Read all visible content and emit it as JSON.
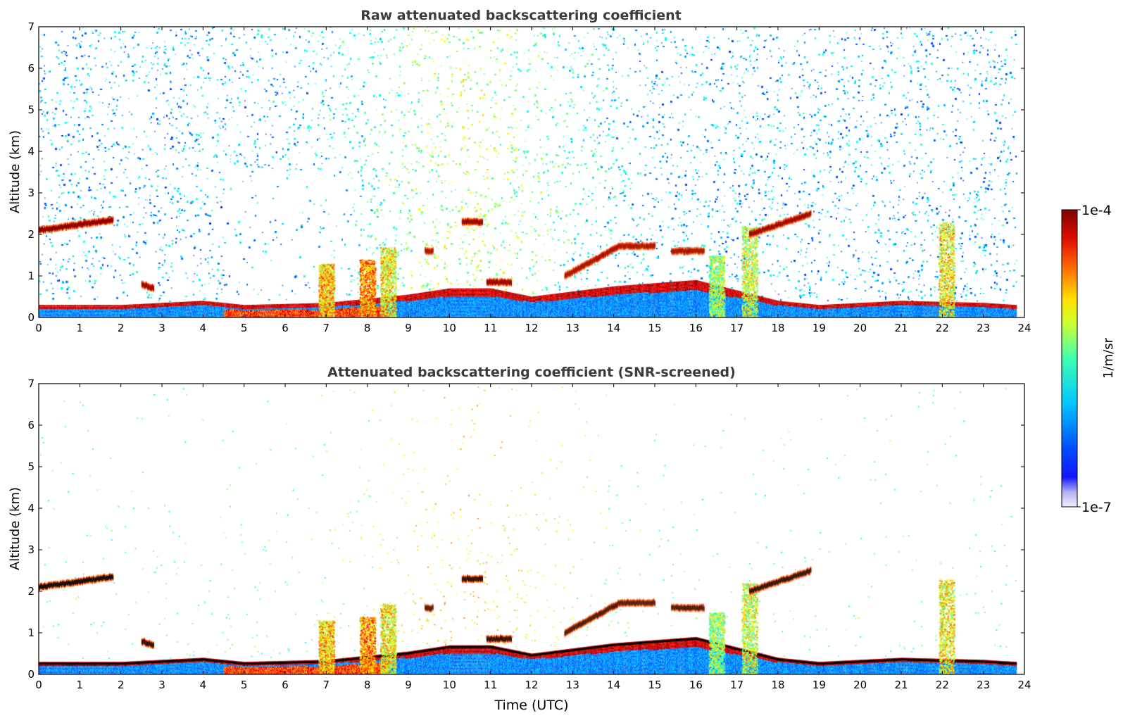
{
  "chart_data": [
    {
      "type": "heatmap",
      "title": "Raw attenuated backscattering coefficient",
      "xlabel": "",
      "ylabel": "Altitude (km)",
      "xlim": [
        0,
        24
      ],
      "ylim": [
        0,
        7
      ],
      "xticks": [
        "0",
        "1",
        "2",
        "3",
        "4",
        "5",
        "6",
        "7",
        "8",
        "9",
        "10",
        "11",
        "12",
        "13",
        "14",
        "15",
        "16",
        "17",
        "18",
        "19",
        "20",
        "21",
        "22",
        "23",
        "24"
      ],
      "yticks": [
        "0",
        "1",
        "2",
        "3",
        "4",
        "5",
        "6",
        "7"
      ],
      "noise_level": "high",
      "layers": [
        {
          "t0": 0.0,
          "t1": 1.8,
          "alt_start": 2.1,
          "alt_end": 2.35,
          "intensity": 1.0
        },
        {
          "t0": 2.5,
          "t1": 2.8,
          "alt_start": 0.8,
          "alt_end": 0.7,
          "intensity": 0.95
        },
        {
          "t0": 9.4,
          "t1": 9.6,
          "alt_start": 1.6,
          "alt_end": 1.6,
          "intensity": 0.9
        },
        {
          "t0": 10.3,
          "t1": 10.8,
          "alt_start": 2.3,
          "alt_end": 2.3,
          "intensity": 1.0
        },
        {
          "t0": 10.9,
          "t1": 11.5,
          "alt_start": 0.85,
          "alt_end": 0.85,
          "intensity": 1.0
        },
        {
          "t0": 12.8,
          "t1": 14.1,
          "alt_start": 1.0,
          "alt_end": 1.7,
          "intensity": 1.0
        },
        {
          "t0": 14.1,
          "t1": 15.0,
          "alt_start": 1.72,
          "alt_end": 1.72,
          "intensity": 0.9
        },
        {
          "t0": 15.4,
          "t1": 16.2,
          "alt_start": 1.6,
          "alt_end": 1.6,
          "intensity": 0.95
        },
        {
          "t0": 17.3,
          "t1": 18.8,
          "alt_start": 2.0,
          "alt_end": 2.5,
          "intensity": 1.0
        }
      ],
      "plumes": [
        {
          "t": 7.0,
          "top": 1.3,
          "intensity": 0.85
        },
        {
          "t": 8.0,
          "top": 1.4,
          "intensity": 0.9
        },
        {
          "t": 8.5,
          "top": 1.7,
          "intensity": 0.8
        },
        {
          "t": 16.5,
          "top": 1.5,
          "intensity": 0.7
        },
        {
          "t": 17.3,
          "top": 2.2,
          "intensity": 0.75
        },
        {
          "t": 22.1,
          "top": 2.3,
          "intensity": 0.8
        }
      ],
      "surface_layer_top": [
        {
          "t": 0,
          "alt": 0.3
        },
        {
          "t": 2,
          "alt": 0.3
        },
        {
          "t": 4,
          "alt": 0.4
        },
        {
          "t": 5,
          "alt": 0.3
        },
        {
          "t": 7,
          "alt": 0.35
        },
        {
          "t": 9,
          "alt": 0.55
        },
        {
          "t": 10,
          "alt": 0.7
        },
        {
          "t": 11,
          "alt": 0.7
        },
        {
          "t": 12,
          "alt": 0.5
        },
        {
          "t": 14,
          "alt": 0.75
        },
        {
          "t": 16,
          "alt": 0.9
        },
        {
          "t": 18,
          "alt": 0.4
        },
        {
          "t": 19,
          "alt": 0.3
        },
        {
          "t": 21,
          "alt": 0.4
        },
        {
          "t": 23,
          "alt": 0.35
        },
        {
          "t": 23.8,
          "alt": 0.3
        }
      ]
    },
    {
      "type": "heatmap",
      "title": "Attenuated backscattering coefficient (SNR-screened)",
      "xlabel": "Time (UTC)",
      "ylabel": "Altitude (km)",
      "xlim": [
        0,
        24
      ],
      "ylim": [
        0,
        7
      ],
      "xticks": [
        "0",
        "1",
        "2",
        "3",
        "4",
        "5",
        "6",
        "7",
        "8",
        "9",
        "10",
        "11",
        "12",
        "13",
        "14",
        "15",
        "16",
        "17",
        "18",
        "19",
        "20",
        "21",
        "22",
        "23",
        "24"
      ],
      "yticks": [
        "0",
        "1",
        "2",
        "3",
        "4",
        "5",
        "6",
        "7"
      ],
      "noise_level": "low",
      "layers": [
        {
          "t0": 0.0,
          "t1": 1.8,
          "alt_start": 2.1,
          "alt_end": 2.35,
          "intensity": 1.0
        },
        {
          "t0": 2.5,
          "t1": 2.8,
          "alt_start": 0.8,
          "alt_end": 0.7,
          "intensity": 0.95
        },
        {
          "t0": 9.4,
          "t1": 9.6,
          "alt_start": 1.6,
          "alt_end": 1.6,
          "intensity": 0.9
        },
        {
          "t0": 10.3,
          "t1": 10.8,
          "alt_start": 2.3,
          "alt_end": 2.3,
          "intensity": 1.0
        },
        {
          "t0": 10.9,
          "t1": 11.5,
          "alt_start": 0.85,
          "alt_end": 0.85,
          "intensity": 1.0
        },
        {
          "t0": 12.8,
          "t1": 14.1,
          "alt_start": 1.0,
          "alt_end": 1.7,
          "intensity": 1.0
        },
        {
          "t0": 14.1,
          "t1": 15.0,
          "alt_start": 1.72,
          "alt_end": 1.72,
          "intensity": 0.9
        },
        {
          "t0": 15.4,
          "t1": 16.2,
          "alt_start": 1.6,
          "alt_end": 1.6,
          "intensity": 0.95
        },
        {
          "t0": 17.3,
          "t1": 18.8,
          "alt_start": 2.0,
          "alt_end": 2.5,
          "intensity": 1.0
        }
      ],
      "plumes": [
        {
          "t": 7.0,
          "top": 1.3,
          "intensity": 0.85
        },
        {
          "t": 8.0,
          "top": 1.4,
          "intensity": 0.9
        },
        {
          "t": 8.5,
          "top": 1.7,
          "intensity": 0.8
        },
        {
          "t": 16.5,
          "top": 1.5,
          "intensity": 0.7
        },
        {
          "t": 17.3,
          "top": 2.2,
          "intensity": 0.75
        },
        {
          "t": 22.1,
          "top": 2.3,
          "intensity": 0.8
        }
      ],
      "surface_layer_top": [
        {
          "t": 0,
          "alt": 0.3
        },
        {
          "t": 2,
          "alt": 0.3
        },
        {
          "t": 4,
          "alt": 0.4
        },
        {
          "t": 5,
          "alt": 0.3
        },
        {
          "t": 7,
          "alt": 0.35
        },
        {
          "t": 9,
          "alt": 0.55
        },
        {
          "t": 10,
          "alt": 0.7
        },
        {
          "t": 11,
          "alt": 0.7
        },
        {
          "t": 12,
          "alt": 0.5
        },
        {
          "t": 14,
          "alt": 0.75
        },
        {
          "t": 16,
          "alt": 0.9
        },
        {
          "t": 18,
          "alt": 0.4
        },
        {
          "t": 19,
          "alt": 0.3
        },
        {
          "t": 21,
          "alt": 0.4
        },
        {
          "t": 23,
          "alt": 0.35
        },
        {
          "t": 23.8,
          "alt": 0.3
        }
      ]
    }
  ],
  "colorbar": {
    "label": "1/m/sr",
    "max_label": "1e-4",
    "min_label": "1e-7",
    "scale": "log",
    "colormap": "jet",
    "colors": [
      "#eeeeff",
      "#0000ff",
      "#00ffff",
      "#ffff00",
      "#ff0000",
      "#800000"
    ]
  }
}
